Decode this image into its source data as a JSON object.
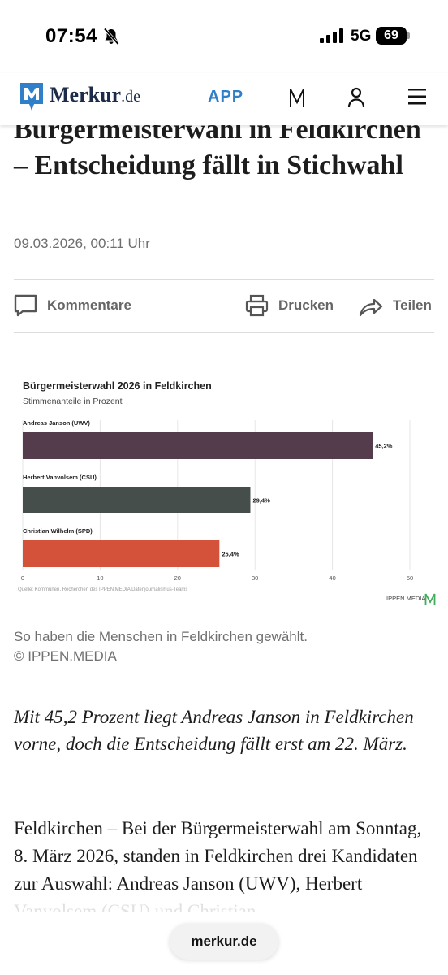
{
  "status_bar": {
    "time": "07:54",
    "network": "5G",
    "battery": "69"
  },
  "nav": {
    "brand_main": "Merkur",
    "brand_suffix": ".de",
    "app_label": "APP"
  },
  "article": {
    "title": "Bürgermeisterwahl in Feldkirchen – Entscheidung fällt in Stichwahl",
    "date": "09.03.2026, 00:11 Uhr",
    "actions": {
      "comments": "Kommentare",
      "print": "Drucken",
      "share": "Teilen"
    },
    "caption": "So haben die Menschen in Feldkirchen gewählt.",
    "credit": "© IPPEN.MEDIA",
    "lead": "Mit 45,2 Prozent liegt Andreas Janson in Feldkirchen vorne, doch die Entscheidung fällt erst am 22. März.",
    "body": "Feldkirchen – Bei der Bürgermeisterwahl am Sonntag, 8. März 2026, standen in Feldkirchen drei Kandidaten zur Auswahl: Andreas Janson (UWV), Herbert Vanvolsem (CSU) und Christian"
  },
  "chart_data": {
    "type": "bar",
    "orientation": "horizontal",
    "title": "Bürgermeisterwahl 2026 in Feldkirchen",
    "subtitle": "Stimmenanteile in Prozent",
    "categories": [
      "Andreas Janson (UWV)",
      "Herbert Vanvolsem (CSU)",
      "Christian Wilhelm (SPD)"
    ],
    "values": [
      45.2,
      29.4,
      25.4
    ],
    "value_labels": [
      "45,2%",
      "29,4%",
      "25,4%"
    ],
    "colors": [
      "#553c4d",
      "#464e4c",
      "#d4523a"
    ],
    "xlim": [
      0,
      50
    ],
    "xticks": [
      0,
      10,
      20,
      30,
      40,
      50
    ],
    "grid": true,
    "source": "Quelle: Kommunen, Recherchen des IPPEN.MEDIA Datenjournalismus-Teams",
    "brand": "IPPEN.MEDIA"
  },
  "address_bar": {
    "url": "merkur.de"
  },
  "colors": {
    "brand_blue": "#2f7fc9",
    "brand_green": "#3fae5b"
  }
}
